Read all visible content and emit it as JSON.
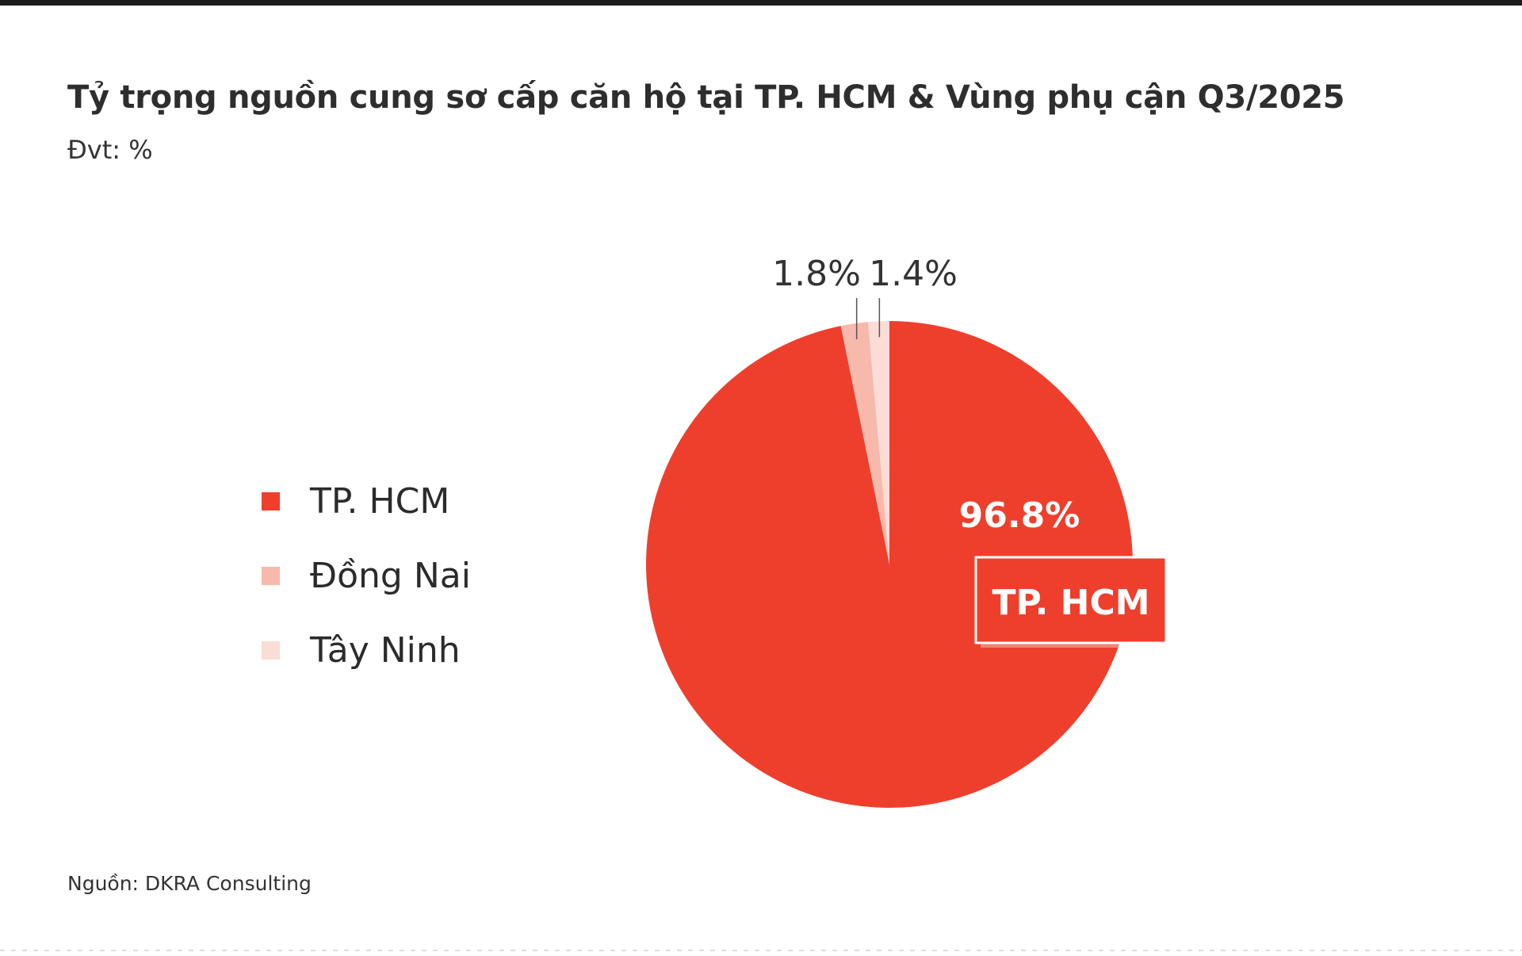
{
  "header": {
    "title": "Tỷ trọng nguồn cung sơ cấp căn hộ tại TP. HCM & Vùng phụ cận Q3/2025",
    "subtitle": "Đvt: %"
  },
  "footer": {
    "source": "Nguồn: DKRA Consulting"
  },
  "colors": {
    "hcm": "#ee3f2d",
    "dong_nai": "#f7b9ac",
    "tay_ninh": "#fbdcd6"
  },
  "chart_data": {
    "type": "pie",
    "title": "Tỷ trọng nguồn cung sơ cấp căn hộ tại TP. HCM & Vùng phụ cận Q3/2025",
    "unit": "Đvt: %",
    "legend_position": "left",
    "slices": [
      {
        "key": "hcm",
        "name": "TP. HCM",
        "value": 96.8,
        "label": "96.8%",
        "color": "#ee3f2d"
      },
      {
        "key": "dong_nai",
        "name": "Đồng Nai",
        "value": 1.8,
        "label": "1.8%",
        "color": "#f7b9ac"
      },
      {
        "key": "tay_ninh",
        "name": "Tây Ninh",
        "value": 1.4,
        "label": "1.4%",
        "color": "#fbdcd6"
      }
    ],
    "callout": "TP. HCM"
  }
}
